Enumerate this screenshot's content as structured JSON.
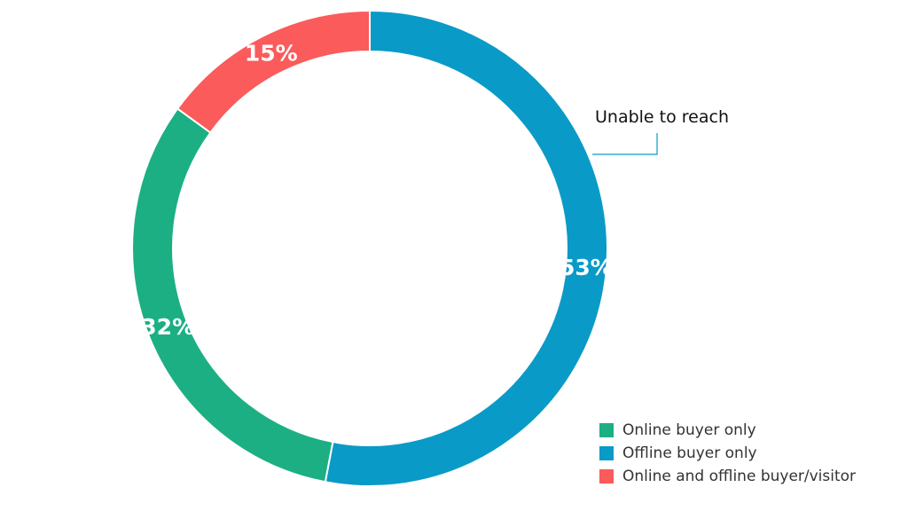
{
  "chart_data": {
    "type": "pie",
    "variant": "donut",
    "categories": [
      "Offline buyer only",
      "Online buyer only",
      "Online and offline buyer/visitor"
    ],
    "values": [
      53,
      32,
      15
    ],
    "value_labels": [
      "53%",
      "32%",
      "15%"
    ],
    "colors": [
      "#0a9ac7",
      "#1caf84",
      "#fb5b5b"
    ],
    "annotations": [
      {
        "text": "Unable to reach",
        "target": "Offline buyer only"
      }
    ],
    "legend": {
      "position": "bottom-right",
      "items": [
        {
          "label": "Online buyer only",
          "color": "#1caf84"
        },
        {
          "label": "Offline buyer only",
          "color": "#0a9ac7"
        },
        {
          "label": "Online and offline buyer/visitor",
          "color": "#fb5b5b"
        }
      ]
    }
  }
}
